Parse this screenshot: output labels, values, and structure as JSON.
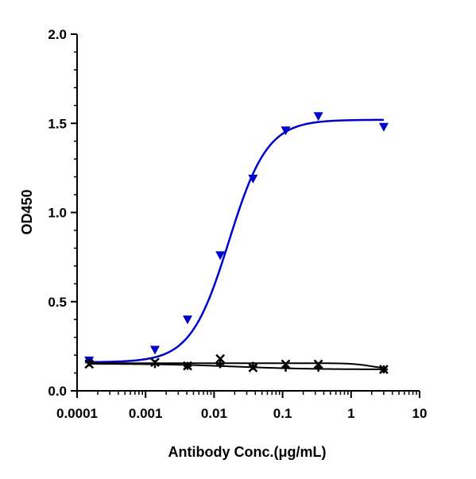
{
  "chart_data": {
    "type": "scatter",
    "title": "",
    "xlabel": "Antibody Conc.(μg/mL)",
    "ylabel": "OD450",
    "xscale": "log",
    "xlim": [
      0.0001,
      10
    ],
    "ylim": [
      0,
      2.0
    ],
    "grid": false,
    "legend": "none",
    "x_tick_labels": [
      "0.0001",
      "0.001",
      "0.01",
      "0.1",
      "1",
      "10"
    ],
    "y_tick_labels": [
      "0.0",
      "0.5",
      "1.0",
      "1.5",
      "2.0"
    ],
    "x_ticks": [
      0.0001,
      0.001,
      0.01,
      0.1,
      1,
      10
    ],
    "y_ticks": [
      0,
      0.5,
      1.0,
      1.5,
      2.0
    ],
    "series": [
      {
        "marker": "triangle-down",
        "color": "#0000cc",
        "points": [
          {
            "x": 0.00015,
            "y": 0.17
          },
          {
            "x": 0.00137,
            "y": 0.23
          },
          {
            "x": 0.0041,
            "y": 0.4
          },
          {
            "x": 0.0123,
            "y": 0.76
          },
          {
            "x": 0.037,
            "y": 1.19
          },
          {
            "x": 0.111,
            "y": 1.46
          },
          {
            "x": 0.333,
            "y": 1.54
          },
          {
            "x": 3.0,
            "y": 1.48
          }
        ],
        "fit": {
          "bottom": 0.16,
          "top": 1.52,
          "ec50": 0.0165,
          "hill": 1.55
        }
      },
      {
        "marker": "x",
        "color": "#000000",
        "points": [
          {
            "x": 0.00015,
            "y": 0.15
          },
          {
            "x": 0.00137,
            "y": 0.16
          },
          {
            "x": 0.0041,
            "y": 0.14
          },
          {
            "x": 0.0123,
            "y": 0.18
          },
          {
            "x": 0.037,
            "y": 0.13
          },
          {
            "x": 0.111,
            "y": 0.15
          },
          {
            "x": 0.333,
            "y": 0.15
          },
          {
            "x": 3.0,
            "y": 0.12
          }
        ],
        "fit": {
          "bottom": 0.12,
          "top": 0.155,
          "ec50": 2.0,
          "hill": -3.0
        }
      },
      {
        "marker": "plus",
        "color": "#000000",
        "points": [
          {
            "x": 0.00015,
            "y": 0.16
          },
          {
            "x": 0.00137,
            "y": 0.15
          },
          {
            "x": 0.0041,
            "y": 0.14
          },
          {
            "x": 0.0123,
            "y": 0.15
          },
          {
            "x": 0.037,
            "y": 0.14
          },
          {
            "x": 0.111,
            "y": 0.13
          },
          {
            "x": 0.333,
            "y": 0.13
          },
          {
            "x": 3.0,
            "y": 0.12
          }
        ],
        "fit": {
          "bottom": 0.12,
          "top": 0.152,
          "ec50": 0.02,
          "hill": -0.8
        }
      }
    ]
  }
}
